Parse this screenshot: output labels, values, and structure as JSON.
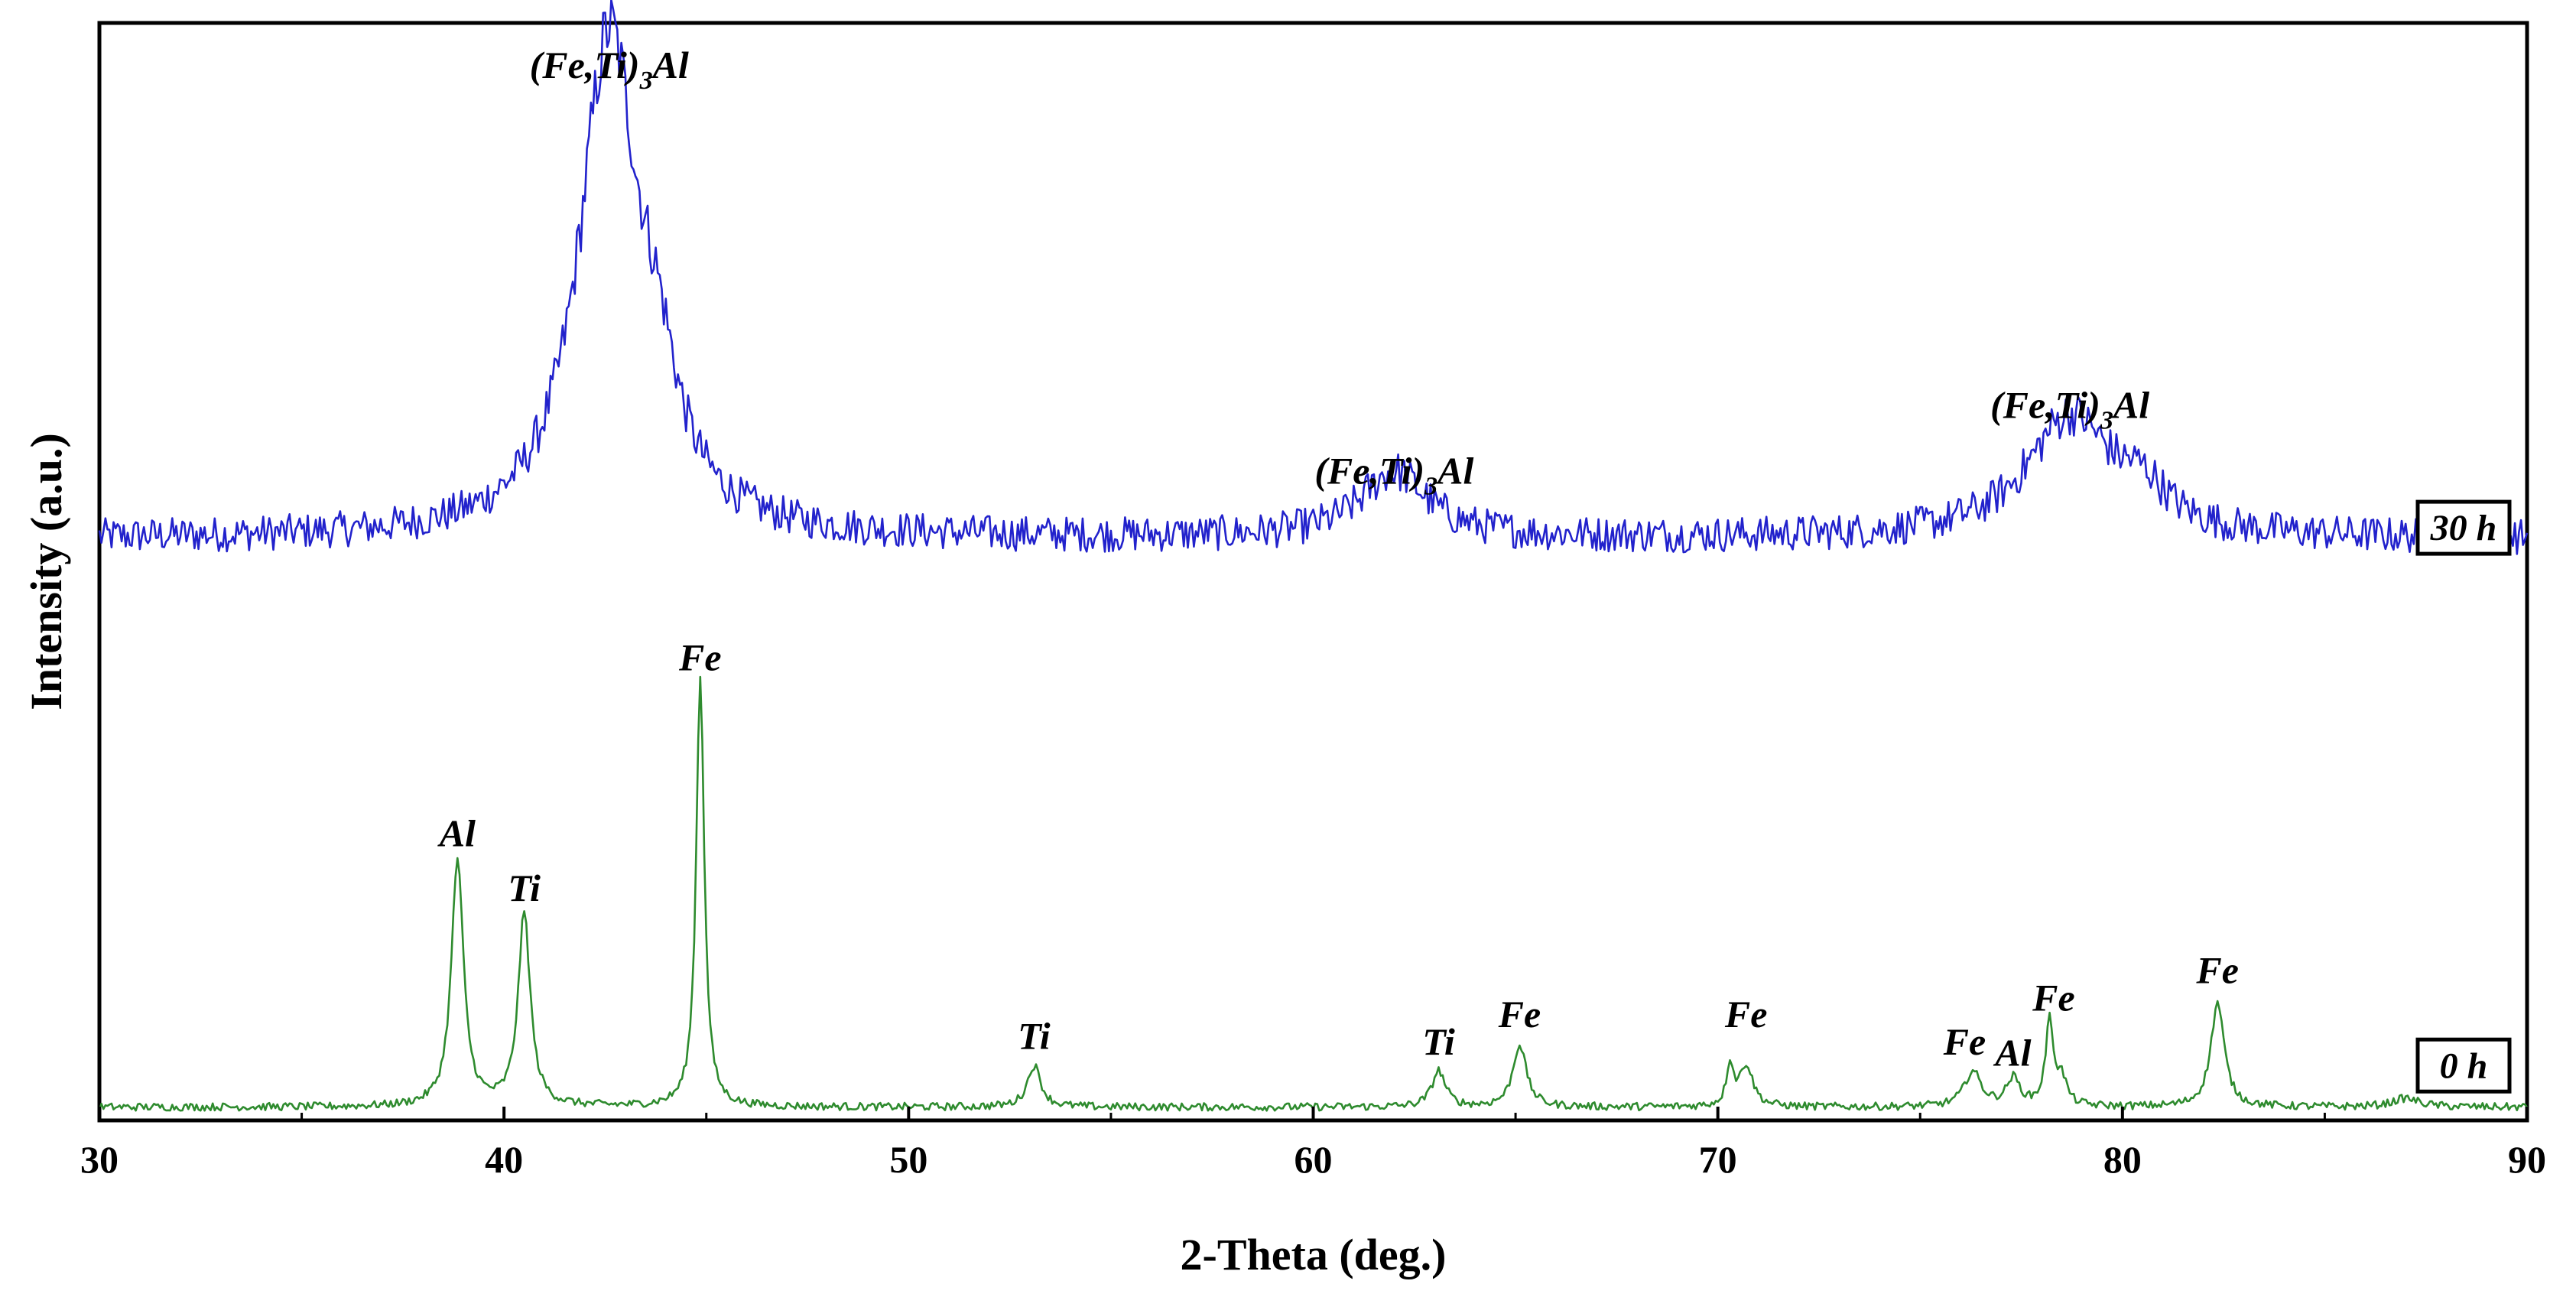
{
  "chart_data": {
    "type": "line",
    "title": "",
    "xlabel": "2-Theta (deg.)",
    "ylabel": "Intensity (a.u.)",
    "xlim": [
      30,
      90
    ],
    "ylim": [
      0,
      100
    ],
    "xticks": [
      30,
      40,
      50,
      60,
      70,
      80,
      90
    ],
    "grid": false,
    "y_tick_labels_shown": false,
    "series": [
      {
        "name": "30 h",
        "color": "#2222cc",
        "baseline": 53,
        "noise": 1.6,
        "peaks": [
          {
            "x": 42.6,
            "height": 45,
            "width": 0.9,
            "label": "(Fe,Ti)3Al"
          },
          {
            "x": 43.8,
            "height": 8,
            "width": 0.6
          },
          {
            "x": 62.0,
            "height": 6,
            "width": 1.0,
            "label": "(Fe,Ti)3Al"
          },
          {
            "x": 78.7,
            "height": 11,
            "width": 1.3,
            "label": "(Fe,Ti)3Al"
          },
          {
            "x": 80.5,
            "height": 3,
            "width": 0.7
          }
        ]
      },
      {
        "name": "0 h",
        "color": "#2e8b2e",
        "baseline": 1.2,
        "noise": 0.35,
        "peaks": [
          {
            "x": 38.85,
            "height": 22.5,
            "width": 0.18,
            "label": "Al"
          },
          {
            "x": 40.5,
            "height": 17.5,
            "width": 0.18,
            "label": "Ti"
          },
          {
            "x": 44.85,
            "height": 39.5,
            "width": 0.12,
            "label": "Fe"
          },
          {
            "x": 53.1,
            "height": 3.8,
            "width": 0.2,
            "label": "Ti"
          },
          {
            "x": 63.1,
            "height": 3.3,
            "width": 0.2,
            "label": "Ti"
          },
          {
            "x": 65.1,
            "height": 5.7,
            "width": 0.2,
            "label": "Fe"
          },
          {
            "x": 70.3,
            "height": 3.8,
            "width": 0.1
          },
          {
            "x": 70.7,
            "height": 3.8,
            "width": 0.2,
            "label": "Fe"
          },
          {
            "x": 76.3,
            "height": 3.2,
            "width": 0.25,
            "label": "Fe"
          },
          {
            "x": 77.3,
            "height": 2.5,
            "width": 0.2,
            "label": "Al"
          },
          {
            "x": 78.2,
            "height": 7.6,
            "width": 0.12,
            "label": "Fe"
          },
          {
            "x": 78.5,
            "height": 2.3,
            "width": 0.15
          },
          {
            "x": 82.35,
            "height": 9.5,
            "width": 0.2,
            "label": "Fe"
          },
          {
            "x": 87.0,
            "height": 0.8,
            "width": 0.4
          }
        ]
      }
    ],
    "annotations": [
      {
        "text": "(Fe,Ti)",
        "sub": "3",
        "suffix": "Al",
        "x": 42.6,
        "y": 95
      },
      {
        "text": "(Fe,Ti)",
        "sub": "3",
        "suffix": "Al",
        "x": 62.0,
        "y": 58
      },
      {
        "text": "(Fe,Ti)",
        "sub": "3",
        "suffix": "Al",
        "x": 78.7,
        "y": 64
      },
      {
        "text": "Fe",
        "x": 44.85,
        "y": 41
      },
      {
        "text": "Al",
        "x": 38.85,
        "y": 25
      },
      {
        "text": "Ti",
        "x": 40.5,
        "y": 20
      },
      {
        "text": "Ti",
        "x": 53.1,
        "y": 6.5
      },
      {
        "text": "Ti",
        "x": 63.1,
        "y": 6
      },
      {
        "text": "Fe",
        "x": 65.1,
        "y": 8.5
      },
      {
        "text": "Fe",
        "x": 70.7,
        "y": 8.5
      },
      {
        "text": "Fe",
        "x": 76.1,
        "y": 6
      },
      {
        "text": "Al",
        "x": 77.3,
        "y": 5
      },
      {
        "text": "Fe",
        "x": 78.3,
        "y": 10
      },
      {
        "text": "Fe",
        "x": 82.35,
        "y": 12.5
      }
    ],
    "series_labels": [
      {
        "text": "30 h",
        "y": 54
      },
      {
        "text": "0 h",
        "y": 5
      }
    ]
  }
}
